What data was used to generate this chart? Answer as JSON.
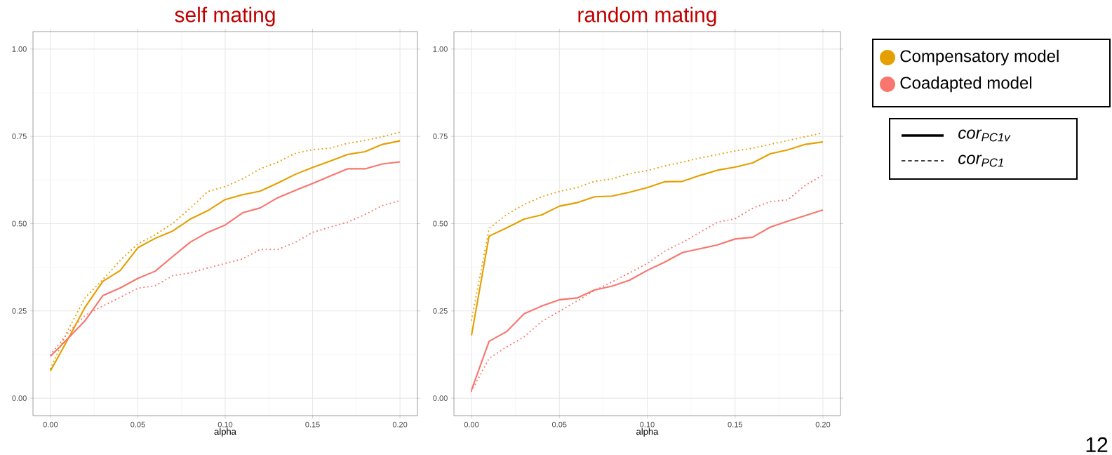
{
  "chart_data": [
    {
      "type": "line",
      "title": "self mating",
      "xlabel": "alpha",
      "x": [
        0,
        0.01,
        0.02,
        0.03,
        0.04,
        0.05,
        0.06,
        0.07,
        0.08,
        0.09,
        0.1,
        0.11,
        0.12,
        0.13,
        0.14,
        0.15,
        0.16,
        0.17,
        0.18,
        0.19,
        0.2
      ],
      "xlim": [
        -0.01,
        0.21
      ],
      "ylim": [
        -0.05,
        1.05
      ],
      "xticks": [
        {
          "value": 0,
          "label": "0.00"
        },
        {
          "value": 0.05,
          "label": "0.05"
        },
        {
          "value": 0.1,
          "label": "0.10"
        },
        {
          "value": 0.15,
          "label": "0.15"
        },
        {
          "value": 0.2,
          "label": "0.20"
        }
      ],
      "yticks": [
        {
          "value": 0,
          "label": "0.00"
        },
        {
          "value": 0.25,
          "label": "0.25"
        },
        {
          "value": 0.5,
          "label": "0.50"
        },
        {
          "value": 0.75,
          "label": "0.75"
        },
        {
          "value": 1,
          "label": "1.00"
        }
      ],
      "grid": true,
      "legend": false,
      "series": [
        {
          "color": "#e69f00",
          "line_style": "solid",
          "values": [
            0.078,
            0.169,
            0.262,
            0.335,
            0.366,
            0.431,
            0.458,
            0.479,
            0.513,
            0.537,
            0.569,
            0.583,
            0.593,
            0.616,
            0.641,
            0.661,
            0.679,
            0.698,
            0.706,
            0.727,
            0.737
          ]
        },
        {
          "color": "#f8766d",
          "line_style": "solid",
          "values": [
            0.12,
            0.171,
            0.223,
            0.294,
            0.316,
            0.343,
            0.364,
            0.406,
            0.447,
            0.475,
            0.496,
            0.531,
            0.545,
            0.574,
            0.595,
            0.615,
            0.636,
            0.657,
            0.657,
            0.671,
            0.677
          ]
        },
        {
          "color": "#e69f00",
          "line_style": "dotted",
          "values": [
            0.085,
            0.195,
            0.289,
            0.34,
            0.395,
            0.442,
            0.468,
            0.501,
            0.544,
            0.592,
            0.606,
            0.628,
            0.657,
            0.676,
            0.701,
            0.712,
            0.716,
            0.73,
            0.738,
            0.749,
            0.762
          ]
        },
        {
          "color": "#f8766d",
          "line_style": "dotted",
          "values": [
            0.125,
            0.187,
            0.238,
            0.264,
            0.289,
            0.315,
            0.322,
            0.351,
            0.359,
            0.373,
            0.386,
            0.399,
            0.426,
            0.426,
            0.446,
            0.475,
            0.49,
            0.504,
            0.526,
            0.552,
            0.566
          ]
        }
      ]
    },
    {
      "type": "line",
      "title": "random mating",
      "xlabel": "alpha",
      "x": [
        0,
        0.01,
        0.02,
        0.03,
        0.04,
        0.05,
        0.06,
        0.07,
        0.08,
        0.09,
        0.1,
        0.11,
        0.12,
        0.13,
        0.14,
        0.15,
        0.16,
        0.17,
        0.18,
        0.19,
        0.2
      ],
      "xlim": [
        -0.01,
        0.21
      ],
      "ylim": [
        -0.05,
        1.05
      ],
      "xticks": [
        {
          "value": 0,
          "label": "0.00"
        },
        {
          "value": 0.05,
          "label": "0.05"
        },
        {
          "value": 0.1,
          "label": "0.10"
        },
        {
          "value": 0.15,
          "label": "0.15"
        },
        {
          "value": 0.2,
          "label": "0.20"
        }
      ],
      "yticks": [
        {
          "value": 0,
          "label": "0.00"
        },
        {
          "value": 0.25,
          "label": "0.25"
        },
        {
          "value": 0.5,
          "label": "0.50"
        },
        {
          "value": 0.75,
          "label": "0.75"
        },
        {
          "value": 1,
          "label": "1.00"
        }
      ],
      "grid": true,
      "legend": "right",
      "annotations": [
        "cor$_{PC1v}$",
        "cor$_{PC1}$",
        "12"
      ],
      "series": [
        {
          "name": "Compensatory model",
          "color": "#e69f00",
          "line_style": "solid",
          "values": [
            0.18,
            0.464,
            0.488,
            0.513,
            0.525,
            0.55,
            0.56,
            0.577,
            0.579,
            0.59,
            0.603,
            0.62,
            0.621,
            0.638,
            0.653,
            0.662,
            0.674,
            0.7,
            0.711,
            0.727,
            0.734
          ]
        },
        {
          "name": "Coadapted model",
          "color": "#f8766d",
          "line_style": "solid",
          "values": [
            0.023,
            0.163,
            0.191,
            0.242,
            0.264,
            0.282,
            0.287,
            0.31,
            0.321,
            0.338,
            0.366,
            0.39,
            0.417,
            0.428,
            0.439,
            0.456,
            0.461,
            0.49,
            0.507,
            0.523,
            0.539
          ]
        },
        {
          "color": "#e69f00",
          "line_style": "dotted",
          "values": [
            0.224,
            0.486,
            0.526,
            0.555,
            0.577,
            0.592,
            0.603,
            0.621,
            0.628,
            0.643,
            0.652,
            0.665,
            0.676,
            0.688,
            0.698,
            0.708,
            0.716,
            0.727,
            0.738,
            0.749,
            0.76
          ]
        },
        {
          "color": "#f8766d",
          "line_style": "dotted",
          "values": [
            0.02,
            0.114,
            0.147,
            0.176,
            0.22,
            0.249,
            0.278,
            0.308,
            0.333,
            0.359,
            0.386,
            0.421,
            0.446,
            0.475,
            0.504,
            0.514,
            0.544,
            0.563,
            0.568,
            0.61,
            0.639
          ]
        }
      ]
    }
  ]
}
